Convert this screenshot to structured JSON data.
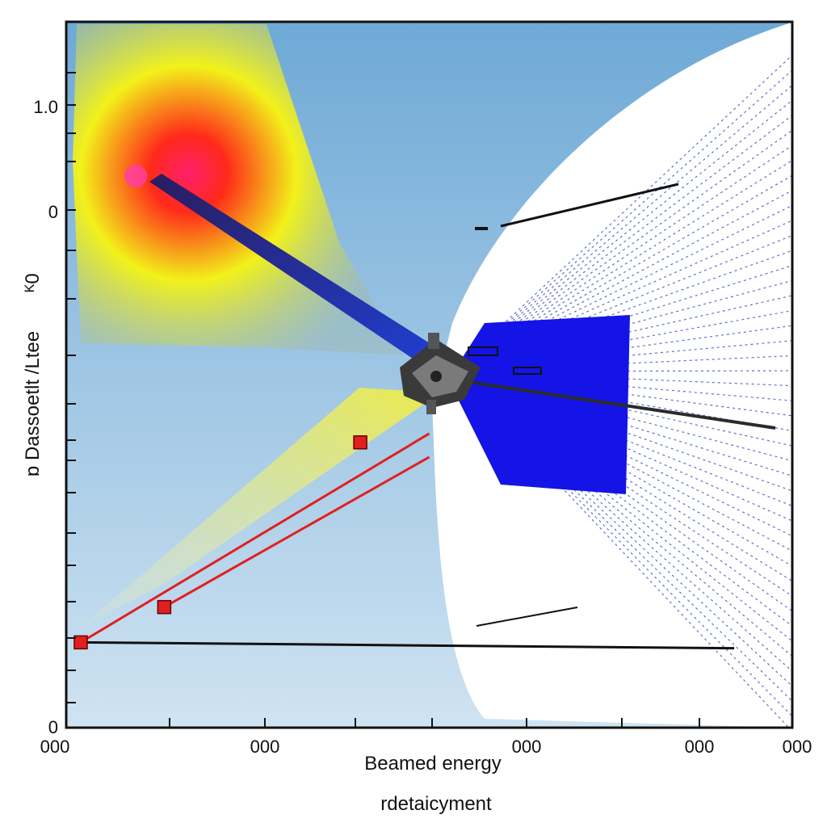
{
  "chart_data": {
    "type": "scatter",
    "title": "",
    "xlabel": "Beamed energy",
    "xlabel_secondary": "rdetaicyment",
    "ylabel": "ɒ Dassoetlt /Ltee",
    "ylabel_secondary": "ᴷ0",
    "y_tick_labels": [
      {
        "value": 1.0,
        "text": "1.0"
      },
      {
        "value": 0.85,
        "text": "0"
      },
      {
        "value": 0,
        "text": "0"
      }
    ],
    "x_tick_labels": [
      "000",
      "000",
      "000",
      "000",
      "000"
    ],
    "ylim": [
      0,
      1.2
    ],
    "grid": false,
    "legend": "none",
    "colors": {
      "sky_top": "#6ea9d6",
      "sky_bottom": "#cfe3f2",
      "heat_core": "#ff1f6a",
      "heat_mid": "#ff2a1a",
      "heat_outer": "#f2f21a",
      "beam_dark": "#2b1c5e",
      "beam_blue": "#1f3fd0",
      "fan_blue": "#1414e6",
      "fan_line": "#2a3fbf",
      "marker_red": "#e02020",
      "trace_black": "#111111"
    },
    "series": [
      {
        "type": "markers",
        "color": "#e02020",
        "points": [
          {
            "x": 0.02,
            "y": 0.145
          },
          {
            "x": 0.135,
            "y": 0.205
          },
          {
            "x": 0.405,
            "y": 0.485
          }
        ]
      }
    ],
    "lines": [
      {
        "from": {
          "x": 0.02,
          "y": 0.145
        },
        "to": {
          "x": 0.5,
          "y": 0.5
        },
        "color": "#e02020"
      },
      {
        "from": {
          "x": 0.135,
          "y": 0.205
        },
        "to": {
          "x": 0.5,
          "y": 0.46
        },
        "color": "#e02020"
      },
      {
        "from": {
          "x": 0.02,
          "y": 0.145
        },
        "to": {
          "x": 0.92,
          "y": 0.135
        },
        "color": "#111111"
      }
    ],
    "icons": [
      "spacecraft-icon"
    ]
  }
}
